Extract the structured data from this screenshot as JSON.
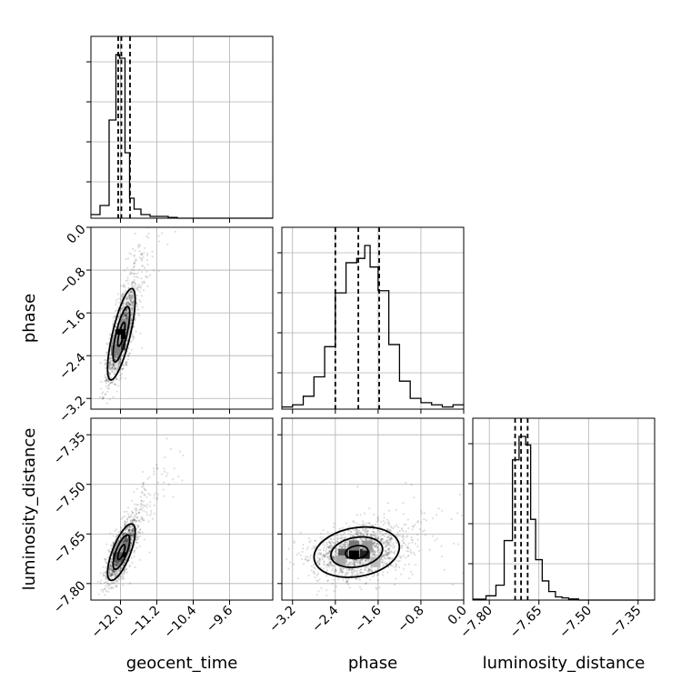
{
  "chart_data": {
    "type": "corner",
    "parameters": [
      "geocent_time",
      "phase",
      "luminosity_distance"
    ],
    "axes": {
      "geocent_time": {
        "label": "geocent_time",
        "range": [
          -12.65,
          -8.65
        ],
        "ticks": [
          -12.0,
          -11.2,
          -10.4,
          -9.6
        ],
        "tick_labels": [
          "−12.0",
          "−11.2",
          "−10.4",
          "−9.6"
        ],
        "quantiles": [
          -12.05,
          -11.98,
          -11.79
        ]
      },
      "phase": {
        "label": "phase",
        "range": [
          -3.4,
          0.0
        ],
        "ticks": [
          -3.2,
          -2.4,
          -1.6,
          -0.8,
          0.0
        ],
        "tick_labels": [
          "−3.2",
          "−2.4",
          "−1.6",
          "−0.8",
          "0.0"
        ],
        "quantiles": [
          -2.4,
          -1.97,
          -1.58
        ]
      },
      "luminosity_distance": {
        "label": "luminosity_distance",
        "range": [
          -7.85,
          -7.3
        ],
        "ticks": [
          -7.8,
          -7.65,
          -7.5,
          -7.35
        ],
        "tick_labels": [
          "−7.80",
          "−7.65",
          "−7.50",
          "−7.35"
        ],
        "quantiles": [
          -7.722,
          -7.704,
          -7.684
        ]
      }
    },
    "histograms": {
      "geocent_time": {
        "bin_edges": [
          -12.65,
          -12.45,
          -12.25,
          -12.1,
          -12.02,
          -11.9,
          -11.8,
          -11.7,
          -11.55,
          -11.35,
          -11.15,
          -10.95,
          -10.75,
          -8.65
        ],
        "counts": [
          2,
          7,
          54,
          90,
          88,
          36,
          11,
          5,
          2,
          1,
          1,
          0.4,
          0
        ]
      },
      "phase": {
        "bin_edges": [
          -3.4,
          -3.2,
          -3.0,
          -2.8,
          -2.6,
          -2.4,
          -2.2,
          -2.0,
          -1.85,
          -1.75,
          -1.6,
          -1.4,
          -1.2,
          -1.0,
          -0.8,
          -0.6,
          -0.4,
          -0.2,
          0.0
        ],
        "counts": [
          1,
          2,
          6,
          15,
          29,
          54,
          68,
          70,
          76,
          66,
          55,
          30,
          13,
          5,
          3,
          2,
          1,
          2
        ]
      },
      "luminosity_distance": {
        "bin_edges": [
          -7.85,
          -7.81,
          -7.78,
          -7.755,
          -7.73,
          -7.71,
          -7.69,
          -7.675,
          -7.66,
          -7.64,
          -7.62,
          -7.6,
          -7.58,
          -7.56,
          -7.53,
          -7.3
        ],
        "counts": [
          0.4,
          2,
          7,
          28,
          66,
          77,
          73,
          38,
          19,
          9,
          4,
          1.5,
          1,
          0.5,
          0
        ]
      }
    },
    "pairs": [
      {
        "x": "geocent_time",
        "y": "phase",
        "center": [
          -11.98,
          -2.0
        ],
        "spread": [
          0.16,
          0.45
        ],
        "correlation": 0.75,
        "density_cells": [
          {
            "x": -12.0,
            "y": -2.0,
            "shade": "#000000"
          },
          {
            "x": -12.0,
            "y": -2.2,
            "shade": "#404040"
          },
          {
            "x": -12.1,
            "y": -2.3,
            "shade": "#808080"
          },
          {
            "x": -11.9,
            "y": -1.8,
            "shade": "#8a8a8a"
          },
          {
            "x": -12.1,
            "y": -2.1,
            "shade": "#a0a0a0"
          }
        ]
      },
      {
        "x": "geocent_time",
        "y": "luminosity_distance",
        "center": [
          -11.98,
          -7.705
        ],
        "spread": [
          0.16,
          0.045
        ],
        "correlation": 0.72,
        "density_cells": [
          {
            "x": -11.98,
            "y": -7.705,
            "shade": "#000000"
          },
          {
            "x": -12.06,
            "y": -7.72,
            "shade": "#555555"
          },
          {
            "x": -11.9,
            "y": -7.69,
            "shade": "#777777"
          },
          {
            "x": -12.06,
            "y": -7.69,
            "shade": "#999999"
          }
        ]
      },
      {
        "x": "phase",
        "y": "luminosity_distance",
        "center": [
          -2.0,
          -7.705
        ],
        "spread": [
          0.42,
          0.04
        ],
        "correlation": 0.2,
        "density_cells": [
          {
            "x": -2.05,
            "y": -7.71,
            "shade": "#000000"
          },
          {
            "x": -1.85,
            "y": -7.71,
            "shade": "#222222"
          },
          {
            "x": -2.25,
            "y": -7.71,
            "shade": "#555555"
          },
          {
            "x": -2.05,
            "y": -7.685,
            "shade": "#777777"
          },
          {
            "x": -1.8,
            "y": -7.685,
            "shade": "#999999"
          },
          {
            "x": -2.3,
            "y": -7.73,
            "shade": "#aaaaaa"
          },
          {
            "x": -1.65,
            "y": -7.735,
            "shade": "#bbbbbb"
          }
        ]
      }
    ],
    "grid": true
  }
}
